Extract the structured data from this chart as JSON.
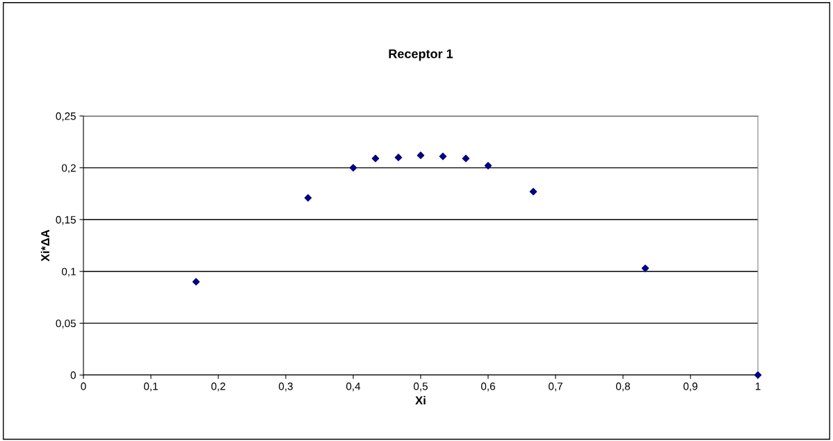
{
  "chart_data": {
    "type": "scatter",
    "title": "Receptor 1",
    "xlabel": "Xi",
    "ylabel": "Xi*ΔA",
    "x": [
      0.167,
      0.333,
      0.4,
      0.433,
      0.467,
      0.5,
      0.533,
      0.567,
      0.6,
      0.667,
      0.833,
      1.0
    ],
    "series": [
      {
        "color": "#000080",
        "values": [
          0.09,
          0.171,
          0.2,
          0.209,
          0.21,
          0.212,
          0.211,
          0.209,
          0.202,
          0.177,
          0.103,
          0.0
        ]
      }
    ],
    "marker": "diamond",
    "grid": "y",
    "xlim": [
      0,
      1
    ],
    "ylim": [
      0,
      0.25
    ],
    "xticks": [
      0,
      {
        "value": 0.1,
        "label": "0,1"
      },
      {
        "value": 0.2,
        "label": "0,2"
      },
      {
        "value": 0.3,
        "label": "0,3"
      },
      {
        "value": 0.4,
        "label": "0,4"
      },
      {
        "value": 0.5,
        "label": "0,5"
      },
      {
        "value": 0.6,
        "label": "0,6"
      },
      {
        "value": 0.7,
        "label": "0,7"
      },
      {
        "value": 0.8,
        "label": "0,8"
      },
      {
        "value": 0.9,
        "label": "0,9"
      },
      1
    ],
    "yticks": [
      0,
      {
        "value": 0.05,
        "label": "0,05"
      },
      {
        "value": 0.1,
        "label": "0,1"
      },
      {
        "value": 0.15,
        "label": "0,15"
      },
      {
        "value": 0.2,
        "label": "0,2"
      },
      {
        "value": 0.25,
        "label": "0,25"
      }
    ]
  }
}
